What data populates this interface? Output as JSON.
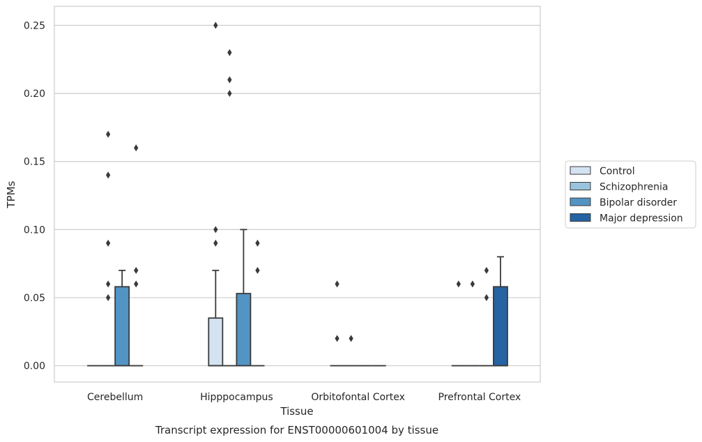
{
  "chart_data": {
    "type": "box",
    "xlabel": "Tissue",
    "ylabel": "TPMs",
    "caption": "Transcript expression for ENST00000601004 by tissue",
    "ylim": [
      -0.012,
      0.264
    ],
    "yticks": [
      0.0,
      0.05,
      0.1,
      0.15,
      0.2,
      0.25
    ],
    "ytick_labels": [
      "0.00",
      "0.05",
      "0.10",
      "0.15",
      "0.20",
      "0.25"
    ],
    "grid": true,
    "legend_position": "right",
    "categories": [
      "Cerebellum",
      "Hipppocampus",
      "Orbitofontal Cortex",
      "Prefrontal Cortex"
    ],
    "series": [
      {
        "name": "Control",
        "color": "#d4e3f2"
      },
      {
        "name": "Schizophrenia",
        "color": "#9ac4dd"
      },
      {
        "name": "Bipolar disorder",
        "color": "#5294c4"
      },
      {
        "name": "Major depression",
        "color": "#2563a3"
      }
    ],
    "boxes": [
      {
        "category": 0,
        "series": 0,
        "q1": 0,
        "median": 0,
        "q3": 0,
        "whisker_low": 0,
        "whisker_high": 0,
        "outliers": []
      },
      {
        "category": 0,
        "series": 1,
        "q1": 0,
        "median": 0,
        "q3": 0,
        "whisker_low": 0,
        "whisker_high": 0,
        "outliers": [
          0.05,
          0.06,
          0.09,
          0.14,
          0.17
        ]
      },
      {
        "category": 0,
        "series": 2,
        "q1": 0,
        "median": 0,
        "q3": 0.058,
        "whisker_low": 0,
        "whisker_high": 0.07,
        "outliers": []
      },
      {
        "category": 0,
        "series": 3,
        "q1": 0,
        "median": 0,
        "q3": 0,
        "whisker_low": 0,
        "whisker_high": 0,
        "outliers": [
          0.06,
          0.07,
          0.16
        ]
      },
      {
        "category": 1,
        "series": 0,
        "q1": 0,
        "median": 0,
        "q3": 0.035,
        "whisker_low": 0,
        "whisker_high": 0.07,
        "outliers": [
          0.09,
          0.1,
          0.25
        ]
      },
      {
        "category": 1,
        "series": 1,
        "q1": 0,
        "median": 0,
        "q3": 0,
        "whisker_low": 0,
        "whisker_high": 0,
        "outliers": [
          0.2,
          0.21,
          0.23
        ]
      },
      {
        "category": 1,
        "series": 2,
        "q1": 0,
        "median": 0,
        "q3": 0.053,
        "whisker_low": 0,
        "whisker_high": 0.1,
        "outliers": []
      },
      {
        "category": 1,
        "series": 3,
        "q1": 0,
        "median": 0,
        "q3": 0,
        "whisker_low": 0,
        "whisker_high": 0,
        "outliers": [
          0.07,
          0.09
        ]
      },
      {
        "category": 2,
        "series": 0,
        "q1": 0,
        "median": 0,
        "q3": 0,
        "whisker_low": 0,
        "whisker_high": 0,
        "outliers": [
          0.02,
          0.06
        ]
      },
      {
        "category": 2,
        "series": 1,
        "q1": 0,
        "median": 0,
        "q3": 0,
        "whisker_low": 0,
        "whisker_high": 0,
        "outliers": [
          0.02
        ]
      },
      {
        "category": 2,
        "series": 2,
        "q1": 0,
        "median": 0,
        "q3": 0,
        "whisker_low": 0,
        "whisker_high": 0,
        "outliers": []
      },
      {
        "category": 2,
        "series": 3,
        "q1": 0,
        "median": 0,
        "q3": 0,
        "whisker_low": 0,
        "whisker_high": 0,
        "outliers": []
      },
      {
        "category": 3,
        "series": 0,
        "q1": 0,
        "median": 0,
        "q3": 0,
        "whisker_low": 0,
        "whisker_high": 0,
        "outliers": [
          0.06
        ]
      },
      {
        "category": 3,
        "series": 1,
        "q1": 0,
        "median": 0,
        "q3": 0,
        "whisker_low": 0,
        "whisker_high": 0,
        "outliers": [
          0.06
        ]
      },
      {
        "category": 3,
        "series": 2,
        "q1": 0,
        "median": 0,
        "q3": 0,
        "whisker_low": 0,
        "whisker_high": 0,
        "outliers": [
          0.05,
          0.07
        ]
      },
      {
        "category": 3,
        "series": 3,
        "q1": 0,
        "median": 0,
        "q3": 0.058,
        "whisker_low": 0,
        "whisker_high": 0.08,
        "outliers": []
      }
    ]
  }
}
